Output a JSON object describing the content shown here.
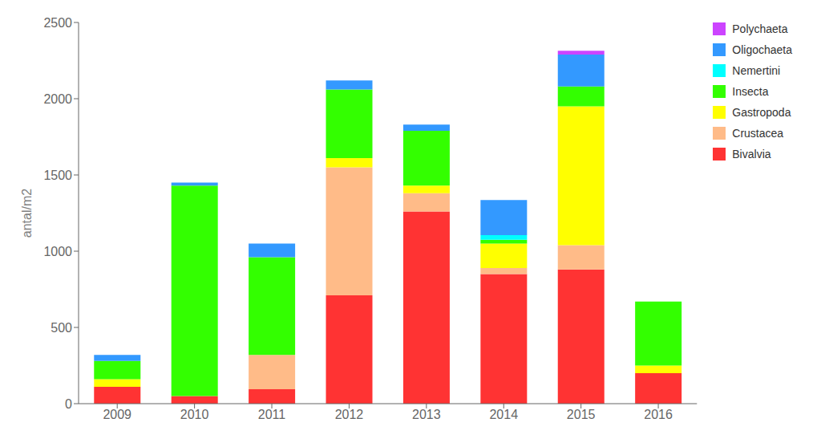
{
  "chart_data": {
    "type": "bar",
    "stacked": true,
    "grid": false,
    "legend": "right",
    "ylabel": "antal/m2",
    "categories": [
      "2009",
      "2010",
      "2011",
      "2012",
      "2013",
      "2014",
      "2015",
      "2016"
    ],
    "series": [
      {
        "name": "Bivalvia",
        "color": "#FF3333",
        "values": [
          110,
          50,
          95,
          710,
          1260,
          850,
          880,
          200
        ]
      },
      {
        "name": "Crustacea",
        "color": "#FFBB88",
        "values": [
          0,
          0,
          225,
          840,
          120,
          40,
          160,
          0
        ]
      },
      {
        "name": "Gastropoda",
        "color": "#FFFF00",
        "values": [
          50,
          0,
          0,
          60,
          50,
          160,
          910,
          50
        ]
      },
      {
        "name": "Insecta",
        "color": "#33FF00",
        "values": [
          120,
          1380,
          640,
          450,
          360,
          25,
          130,
          420
        ]
      },
      {
        "name": "Nemertini",
        "color": "#00FFFF",
        "values": [
          0,
          0,
          0,
          0,
          0,
          30,
          0,
          0
        ]
      },
      {
        "name": "Oligochaeta",
        "color": "#3399FF",
        "values": [
          40,
          20,
          90,
          60,
          40,
          230,
          210,
          0
        ]
      },
      {
        "name": "Polychaeta",
        "color": "#CC44FF",
        "values": [
          0,
          0,
          0,
          0,
          0,
          0,
          25,
          0
        ]
      }
    ],
    "ylim": [
      0,
      2500
    ],
    "yticks": [
      0,
      500,
      1000,
      1500,
      2000,
      2500
    ]
  }
}
